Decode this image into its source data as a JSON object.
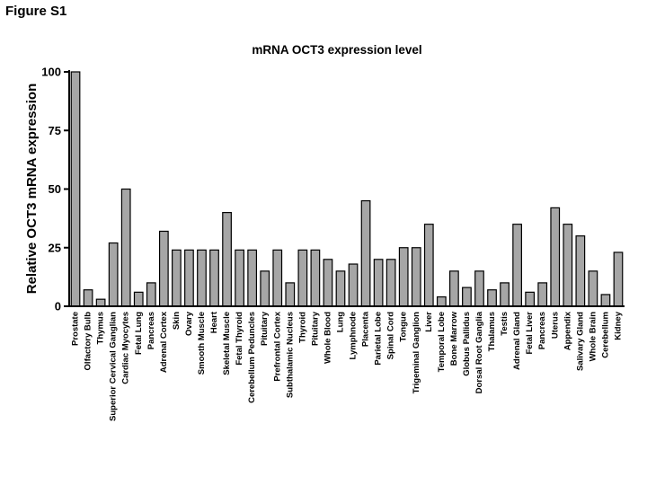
{
  "figure_label": "Figure S1",
  "chart_data": {
    "type": "bar",
    "title": "mRNA OCT3 expression level",
    "xlabel": "",
    "ylabel": "Relative OCT3 mRNA expression",
    "ylim": [
      0,
      100
    ],
    "yticks": [
      0,
      25,
      50,
      75,
      100
    ],
    "bar_color": "#a6a6a6",
    "grid": false,
    "categories": [
      "Prostate",
      "Olfactory Bulb",
      "Thymus",
      "Superior Cervical Ganglian",
      "Cardiac Myocytes",
      "Fetal Lung",
      "Pancreas",
      "Adrenal Cortex",
      "Skin",
      "Ovary",
      "Smooth Muscle",
      "Heart",
      "Skeletal Muscle",
      "Fetal Thyroid",
      "Cerebellum Peduncles",
      "Pituitary",
      "Prefrontal Cortex",
      "Subthalamic Nucleus",
      "Thyroid",
      "Pituitary",
      "Whole Blood",
      "Lung",
      "Lymphnode",
      "Placenta",
      "Parietal Lobe",
      "Spinal Cord",
      "Tongue",
      "Trigeminal Ganglion",
      "Liver",
      "Temporal Lobe",
      "Bone Marrow",
      "Globus Pallidus",
      "Dorsal Root Ganglia",
      "Thalamus",
      "Testis",
      "Adrenal Gland",
      "Fetal Liver",
      "Pancreas",
      "Uterus",
      "Appendix",
      "Salivary Gland",
      "Whole Brain",
      "Cerebellum",
      "Kidney"
    ],
    "values": [
      100,
      7,
      3,
      27,
      50,
      6,
      10,
      32,
      24,
      24,
      24,
      24,
      40,
      24,
      24,
      15,
      24,
      10,
      24,
      24,
      20,
      15,
      18,
      45,
      20,
      20,
      25,
      25,
      35,
      4,
      15,
      8,
      15,
      7,
      10,
      35,
      6,
      10,
      42,
      35,
      30,
      15,
      5,
      23
    ]
  }
}
